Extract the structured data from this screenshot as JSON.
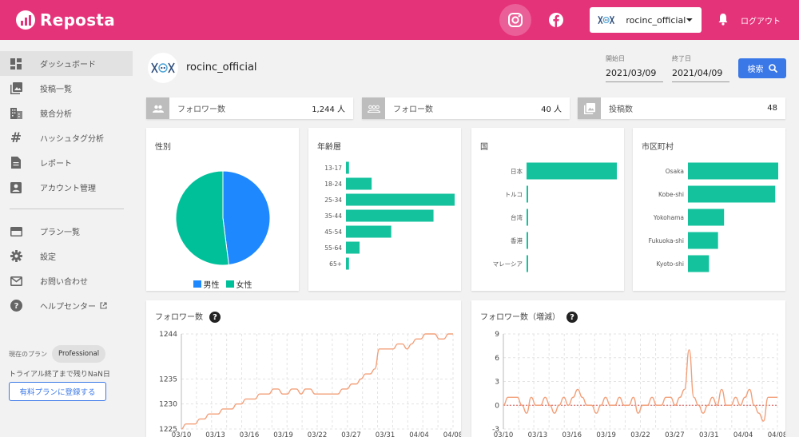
{
  "app": {
    "name": "Reposta",
    "logout_label": "ログアウト",
    "account": "rocinc_official"
  },
  "colors": {
    "brand": "#e5337a",
    "primary": "#3b78e7",
    "male": "#1e88ff",
    "female": "#00c09a",
    "bar": "#14c29e",
    "line": "#f3a07a"
  },
  "sidebar": {
    "items": [
      {
        "label": "ダッシュボード",
        "icon": "dashboard-icon",
        "active": true
      },
      {
        "label": "投稿一覧",
        "icon": "photo-library-icon"
      },
      {
        "label": "競合分析",
        "icon": "building-icon"
      },
      {
        "label": "ハッシュタグ分析",
        "icon": "hashtag-icon"
      },
      {
        "label": "レポート",
        "icon": "document-icon"
      },
      {
        "label": "アカウント管理",
        "icon": "account-box-icon"
      }
    ],
    "items2": [
      {
        "label": "プラン一覧",
        "icon": "credit-card-icon"
      },
      {
        "label": "設定",
        "icon": "gear-icon"
      },
      {
        "label": "お問い合わせ",
        "icon": "mail-icon"
      },
      {
        "label": "ヘルプセンター",
        "icon": "help-circle-icon"
      }
    ],
    "plan_label": "現在のプラン",
    "plan_name": "Professional",
    "trial_text": "トライアル終了まで残りNaN日",
    "upgrade_label": "有料プランに登録する"
  },
  "header_profile": {
    "name": "rocinc_official",
    "start_label": "開始日",
    "start_date": "2021/03/09",
    "end_label": "終了日",
    "end_date": "2021/04/09",
    "search_label": "検索"
  },
  "stats": [
    {
      "label": "フォロワー数",
      "value": "1,244 人",
      "icon": "followers-icon"
    },
    {
      "label": "フォロー数",
      "value": "40 人",
      "icon": "following-icon"
    },
    {
      "label": "投稿数",
      "value": "48",
      "icon": "posts-icon"
    }
  ],
  "chart_data": [
    {
      "type": "pie",
      "title": "性別",
      "slices": [
        {
          "name": "男性",
          "value": 48
        },
        {
          "name": "女性",
          "value": 52
        }
      ]
    },
    {
      "type": "bar",
      "orientation": "horizontal",
      "title": "年齢層",
      "categories": [
        "13-17",
        "18-24",
        "25-34",
        "35-44",
        "45-54",
        "55-64",
        "65+"
      ],
      "values": [
        2,
        17,
        72,
        58,
        30,
        9,
        2
      ]
    },
    {
      "type": "bar",
      "orientation": "horizontal",
      "title": "国",
      "categories": [
        "日本",
        "トルコ",
        "台湾",
        "香港",
        "マレーシア"
      ],
      "values": [
        95,
        1.5,
        1,
        1,
        1
      ]
    },
    {
      "type": "bar",
      "orientation": "horizontal",
      "title": "市区町村",
      "categories": [
        "Osaka",
        "Kobe-shi",
        "Yokohama",
        "Fukuoka-shi",
        "Kyoto-shi"
      ],
      "values": [
        30,
        29,
        12,
        10,
        7
      ]
    },
    {
      "type": "line",
      "title": "フォロワー数",
      "yticks": [
        1225,
        1230,
        1235,
        1244
      ],
      "ylim": [
        1225,
        1244
      ],
      "xticks": [
        "03/10",
        "03/13",
        "03/16",
        "03/19",
        "03/22",
        "03/27",
        "03/31",
        "04/04",
        "04/08"
      ],
      "values": [
        1225,
        1226,
        1226,
        1226,
        1227,
        1227,
        1228,
        1228,
        1228,
        1229,
        1229,
        1229,
        1230,
        1230,
        1231,
        1231,
        1231,
        1232,
        1232,
        1232,
        1233,
        1233,
        1232,
        1232,
        1233,
        1233,
        1232,
        1233,
        1233,
        1232,
        1232,
        1232,
        1232,
        1232,
        1232,
        1233,
        1233,
        1234,
        1234,
        1235,
        1236,
        1236,
        1237,
        1241,
        1241,
        1241,
        1241,
        1242,
        1242,
        1241,
        1242,
        1243,
        1243,
        1244,
        1244,
        1244,
        1243,
        1243,
        1244,
        1244
      ]
    },
    {
      "type": "line",
      "title": "フォロワー数（増減）",
      "yticks": [
        -3,
        0,
        3,
        6,
        9
      ],
      "ylim": [
        -3,
        9
      ],
      "xticks": [
        "03/10",
        "03/13",
        "03/16",
        "03/19",
        "03/22",
        "03/27",
        "03/31",
        "04/04",
        "04/08"
      ],
      "values": [
        0,
        1,
        1,
        1,
        0,
        -1,
        1,
        0,
        0,
        1,
        0,
        -1,
        0,
        1,
        0,
        1,
        2,
        1,
        0,
        0,
        -1,
        0,
        1,
        0,
        0,
        1,
        0,
        0,
        1,
        -1,
        0,
        0,
        1,
        0,
        0,
        1,
        1,
        0,
        1,
        2,
        7,
        1,
        0,
        -1,
        0,
        1,
        0,
        2,
        0,
        0,
        1,
        0,
        1,
        2,
        0,
        -1,
        -2,
        1,
        1,
        1
      ]
    }
  ]
}
